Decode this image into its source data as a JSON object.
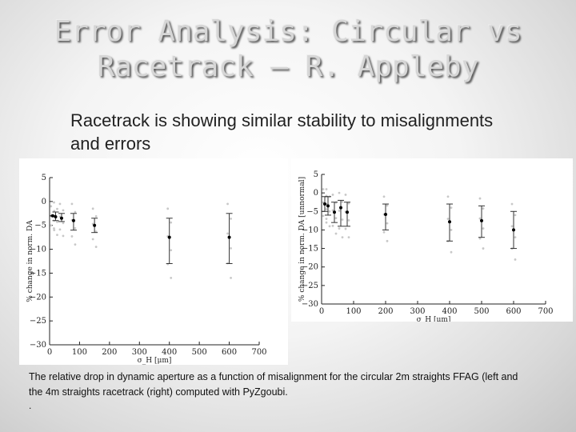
{
  "slide": {
    "title_line1": "Error Analysis: Circular vs",
    "title_line2": "Racetrack – R. Appleby",
    "bullet_icon": "",
    "bullet_text": "Racetrack is showing similar stability to misalignments and errors",
    "caption": "The relative drop in dynamic aperture as a function of misalignment for the circular 2m straights FFAG (left and the 4m straights racetrack (right) computed with PyZgoubi.",
    "caption_dot": "."
  },
  "chart_data": [
    {
      "type": "scatter",
      "title": "",
      "xlabel": "σ_H [μm]",
      "ylabel": "% change in norm. DA",
      "xlim": [
        0,
        700
      ],
      "ylim": [
        -30,
        5
      ],
      "xticks": [
        "0",
        "100",
        "200",
        "300",
        "400",
        "500",
        "600",
        "700"
      ],
      "yticks": [
        "5",
        "0",
        "−5",
        "−10",
        "−15",
        "−20",
        "−25",
        "−30"
      ],
      "grid": false,
      "series": [
        {
          "x": [
            10,
            20,
            40,
            80,
            150,
            400,
            600
          ],
          "y": [
            -3,
            -3.2,
            -3.5,
            -4,
            -5,
            -7.5,
            -7.5
          ],
          "err_low": [
            -3,
            -4,
            -4.2,
            -6,
            -6.5,
            -13,
            -13
          ],
          "err_high": [
            -3,
            -2.2,
            -2.5,
            -2.5,
            -3.5,
            -3.5,
            -2.5
          ]
        }
      ]
    },
    {
      "type": "scatter",
      "title": "",
      "xlabel": "σ_H [μm]",
      "ylabel": "% change in norm. DA [unnormal]",
      "xlim": [
        0,
        700
      ],
      "ylim": [
        -30,
        5
      ],
      "xticks": [
        "0",
        "100",
        "200",
        "300",
        "400",
        "500",
        "600",
        "700"
      ],
      "yticks": [
        "5",
        "0",
        "−5",
        "−10",
        "−15",
        "−20",
        "−25",
        "−30"
      ],
      "grid": false,
      "series": [
        {
          "x": [
            10,
            20,
            40,
            60,
            80,
            200,
            400,
            500,
            600
          ],
          "y": [
            -3,
            -3.5,
            -5.2,
            -4,
            -5.2,
            -5.8,
            -7.8,
            -7.5,
            -10
          ],
          "err_low": [
            -5,
            -6,
            -8,
            -9,
            -9,
            -10,
            -13,
            -12,
            -15
          ],
          "err_high": [
            -1,
            -1,
            -2.5,
            -2,
            -2.5,
            -3,
            -3,
            -3.5,
            -5
          ]
        }
      ]
    }
  ]
}
